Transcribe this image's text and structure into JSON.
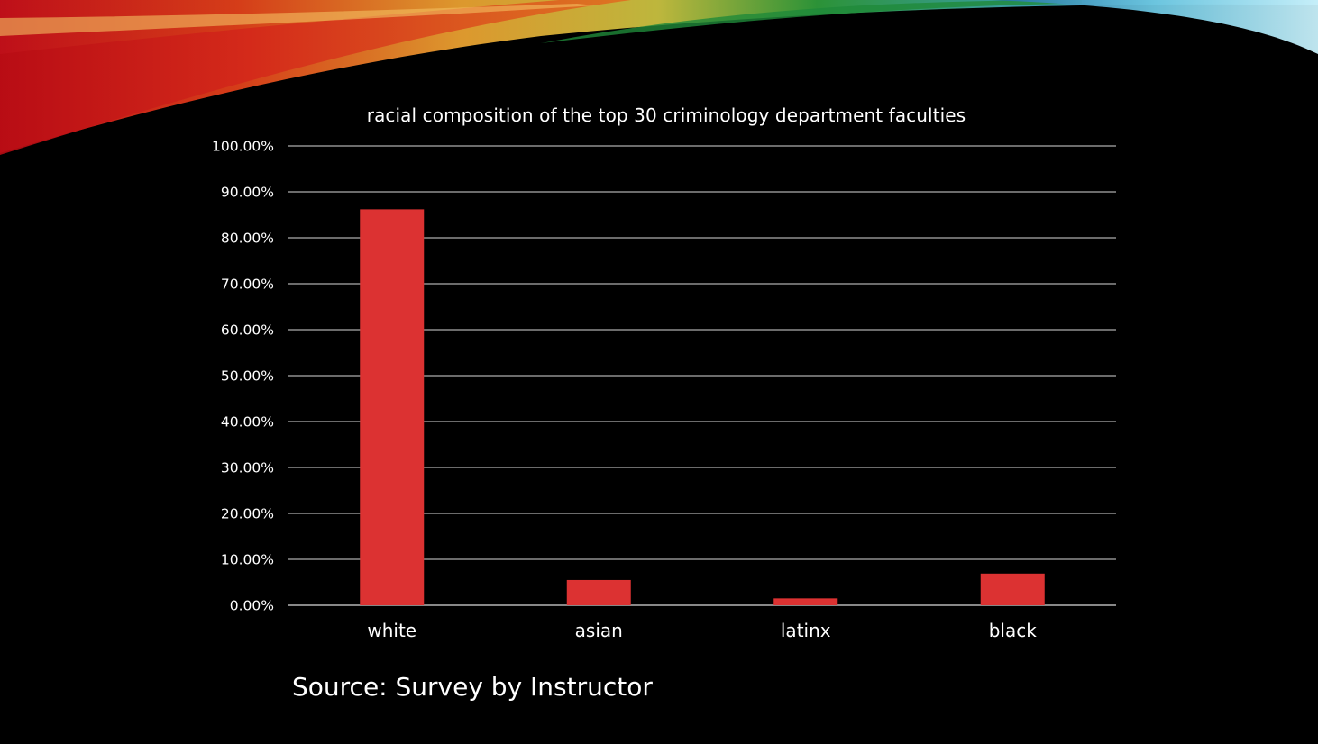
{
  "slide": {
    "source_text": "Source: Survey by Instructor"
  },
  "chart_data": {
    "type": "bar",
    "title": "racial composition of the top 30 criminology department faculties",
    "xlabel": "",
    "ylabel": "",
    "categories": [
      "white",
      "asian",
      "latinx",
      "black"
    ],
    "values": [
      0.862,
      0.055,
      0.015,
      0.069
    ],
    "ylim": [
      0,
      1
    ],
    "y_tick_labels": [
      "0.00%",
      "10.00%",
      "20.00%",
      "30.00%",
      "40.00%",
      "50.00%",
      "60.00%",
      "70.00%",
      "80.00%",
      "90.00%",
      "100.00%"
    ],
    "grid": true,
    "legend": "none",
    "bar_color": "#dc3232",
    "gridline_color": "#d9d9d9"
  }
}
